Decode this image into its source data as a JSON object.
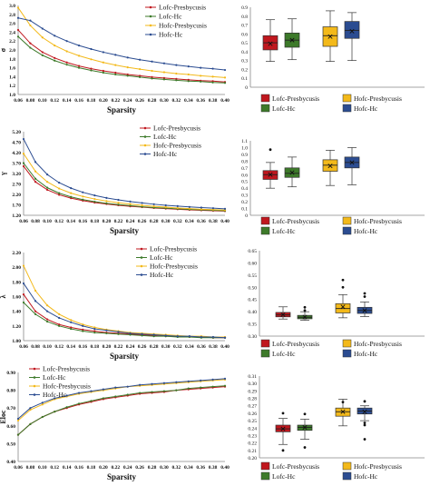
{
  "colors": {
    "lofc_presbycusis": "#c0171e",
    "lofc_hc": "#3d7a2a",
    "hofc_presbycusis": "#f3b91a",
    "hofc_hc": "#2b4c91"
  },
  "chart_data": [
    {
      "type": "line",
      "panel": "row1-line",
      "ylabel": "σ",
      "xlabel": "Sparsity",
      "x": [
        0.06,
        0.08,
        0.1,
        0.12,
        0.14,
        0.16,
        0.18,
        0.2,
        0.22,
        0.24,
        0.26,
        0.28,
        0.3,
        0.32,
        0.34,
        0.36,
        0.38,
        0.4
      ],
      "x_ticks": [
        "0.06",
        "0.08",
        "0.10",
        "0.12",
        "0.14",
        "0.16",
        "0.18",
        "0.20",
        "0.22",
        "0.24",
        "0.26",
        "0.28",
        "0.30",
        "0.32",
        "0.34",
        "0.36",
        "0.38",
        "0.40"
      ],
      "y_ticks": [
        "1.0",
        "1.2",
        "1.4",
        "1.6",
        "1.8",
        "2.0",
        "2.2",
        "2.4",
        "2.6",
        "2.8",
        "3.0"
      ],
      "ylim": [
        1.0,
        3.0
      ],
      "legend": "top-right",
      "series": [
        {
          "name": "Lofc-Presbycusis",
          "color_key": "lofc_presbycusis",
          "values": [
            2.45,
            2.15,
            1.95,
            1.82,
            1.72,
            1.64,
            1.58,
            1.53,
            1.49,
            1.45,
            1.42,
            1.39,
            1.37,
            1.35,
            1.33,
            1.31,
            1.3,
            1.28
          ]
        },
        {
          "name": "Lofc-Hc",
          "color_key": "lofc_hc",
          "values": [
            2.3,
            2.05,
            1.88,
            1.76,
            1.67,
            1.6,
            1.54,
            1.49,
            1.45,
            1.42,
            1.39,
            1.36,
            1.34,
            1.32,
            1.3,
            1.29,
            1.27,
            1.26
          ]
        },
        {
          "name": "Hofc-Presbycusis",
          "color_key": "hofc_presbycusis",
          "values": [
            2.95,
            2.55,
            2.28,
            2.1,
            1.97,
            1.87,
            1.79,
            1.72,
            1.66,
            1.61,
            1.57,
            1.53,
            1.5,
            1.47,
            1.45,
            1.42,
            1.4,
            1.38
          ]
        },
        {
          "name": "Hofc-Hc",
          "color_key": "hofc_hc",
          "values": [
            2.72,
            2.66,
            2.48,
            2.32,
            2.2,
            2.1,
            2.02,
            1.95,
            1.89,
            1.83,
            1.78,
            1.74,
            1.7,
            1.66,
            1.63,
            1.6,
            1.58,
            1.55
          ]
        }
      ]
    },
    {
      "type": "box",
      "panel": "row1-box",
      "y_ticks": [
        "0",
        "0.1",
        "0.2",
        "0.3",
        "0.4",
        "0.5",
        "0.6",
        "0.7",
        "0.8",
        "0.9"
      ],
      "ylim": [
        0,
        0.9
      ],
      "legend": "bottom",
      "boxes": [
        {
          "name": "Lofc-Presbycusis",
          "color_key": "lofc_presbycusis",
          "min": 0.29,
          "q1": 0.42,
          "median": 0.5,
          "q3": 0.58,
          "max": 0.76,
          "mean": 0.49
        },
        {
          "name": "Lofc-Hc",
          "color_key": "lofc_hc",
          "min": 0.31,
          "q1": 0.45,
          "median": 0.53,
          "q3": 0.61,
          "max": 0.77,
          "mean": 0.53
        },
        {
          "name": "Hofc-Presbycusis",
          "color_key": "hofc_presbycusis",
          "min": 0.29,
          "q1": 0.46,
          "median": 0.58,
          "q3": 0.68,
          "max": 0.86,
          "mean": 0.57
        },
        {
          "name": "Hofc-Hc",
          "color_key": "hofc_hc",
          "min": 0.3,
          "q1": 0.55,
          "median": 0.64,
          "q3": 0.74,
          "max": 0.84,
          "mean": 0.63
        }
      ],
      "outliers": []
    },
    {
      "type": "line",
      "panel": "row2-line",
      "ylabel": "γ",
      "xlabel": "Sparsity",
      "x": [
        0.06,
        0.08,
        0.1,
        0.12,
        0.14,
        0.16,
        0.18,
        0.2,
        0.22,
        0.24,
        0.26,
        0.28,
        0.3,
        0.32,
        0.34,
        0.36,
        0.38,
        0.4
      ],
      "x_ticks": [
        "0.06",
        "0.08",
        "0.10",
        "0.12",
        "0.14",
        "0.16",
        "0.18",
        "0.20",
        "0.22",
        "0.24",
        "0.26",
        "0.28",
        "0.30",
        "0.32",
        "0.34",
        "0.36",
        "0.38",
        "0.40"
      ],
      "y_ticks": [
        "1.20",
        "1.70",
        "2.20",
        "2.70",
        "3.20",
        "3.70",
        "4.20",
        "4.70",
        "5.20"
      ],
      "ylim": [
        1.2,
        5.2
      ],
      "legend": "top-right",
      "series": [
        {
          "name": "Lofc-Presbycusis",
          "color_key": "lofc_presbycusis",
          "values": [
            3.55,
            2.8,
            2.42,
            2.18,
            2.02,
            1.9,
            1.81,
            1.74,
            1.68,
            1.63,
            1.59,
            1.55,
            1.52,
            1.49,
            1.46,
            1.44,
            1.42,
            1.4
          ]
        },
        {
          "name": "Lofc-Hc",
          "color_key": "lofc_hc",
          "values": [
            3.7,
            2.95,
            2.52,
            2.26,
            2.08,
            1.95,
            1.85,
            1.77,
            1.71,
            1.66,
            1.61,
            1.57,
            1.54,
            1.51,
            1.48,
            1.46,
            1.44,
            1.42
          ]
        },
        {
          "name": "Hofc-Presbycusis",
          "color_key": "hofc_presbycusis",
          "values": [
            4.15,
            3.3,
            2.8,
            2.48,
            2.26,
            2.1,
            1.98,
            1.88,
            1.8,
            1.74,
            1.68,
            1.63,
            1.59,
            1.55,
            1.52,
            1.49,
            1.47,
            1.45
          ]
        },
        {
          "name": "Hofc-Hc",
          "color_key": "hofc_hc",
          "values": [
            4.85,
            3.75,
            3.15,
            2.76,
            2.5,
            2.3,
            2.15,
            2.03,
            1.94,
            1.86,
            1.79,
            1.73,
            1.68,
            1.64,
            1.6,
            1.57,
            1.54,
            1.51
          ]
        }
      ]
    },
    {
      "type": "box",
      "panel": "row2-box",
      "y_ticks": [
        "0",
        "0.1",
        "0.2",
        "0.3",
        "0.4",
        "0.5",
        "0.6",
        "0.7",
        "0.8",
        "0.9",
        "1.0",
        "1.1"
      ],
      "ylim": [
        0,
        1.1
      ],
      "legend": "bottom",
      "boxes": [
        {
          "name": "Lofc-Presbycusis",
          "color_key": "lofc_presbycusis",
          "min": 0.4,
          "q1": 0.53,
          "median": 0.6,
          "q3": 0.66,
          "max": 0.78,
          "mean": 0.6
        },
        {
          "name": "Lofc-Hc",
          "color_key": "lofc_hc",
          "min": 0.42,
          "q1": 0.56,
          "median": 0.62,
          "q3": 0.7,
          "max": 0.86,
          "mean": 0.63
        },
        {
          "name": "Hofc-Presbycusis",
          "color_key": "hofc_presbycusis",
          "min": 0.44,
          "q1": 0.65,
          "median": 0.74,
          "q3": 0.82,
          "max": 0.96,
          "mean": 0.73
        },
        {
          "name": "Hofc-Hc",
          "color_key": "hofc_hc",
          "min": 0.45,
          "q1": 0.7,
          "median": 0.78,
          "q3": 0.86,
          "max": 1.0,
          "mean": 0.78
        }
      ],
      "outliers": [
        {
          "box": 0,
          "value": 0.97
        }
      ]
    },
    {
      "type": "line",
      "panel": "row3-line",
      "ylabel": "λ",
      "xlabel": "Sparsity",
      "x": [
        0.06,
        0.08,
        0.1,
        0.12,
        0.14,
        0.16,
        0.18,
        0.2,
        0.22,
        0.24,
        0.26,
        0.28,
        0.3,
        0.32,
        0.34,
        0.36,
        0.38,
        0.4
      ],
      "x_ticks": [
        "0.06",
        "0.08",
        "0.10",
        "0.12",
        "0.14",
        "0.16",
        "0.18",
        "0.20",
        "0.22",
        "0.24",
        "0.26",
        "0.28",
        "0.30",
        "0.32",
        "0.34",
        "0.36",
        "0.38",
        "0.40"
      ],
      "y_ticks": [
        "1.00",
        "1.20",
        "1.40",
        "1.60",
        "1.80",
        "2.00",
        "2.20"
      ],
      "ylim": [
        1.0,
        2.2
      ],
      "legend": "top-right",
      "series": [
        {
          "name": "Lofc-Presbycusis",
          "color_key": "lofc_presbycusis",
          "values": [
            1.63,
            1.4,
            1.29,
            1.22,
            1.18,
            1.15,
            1.13,
            1.11,
            1.1,
            1.09,
            1.08,
            1.07,
            1.06,
            1.06,
            1.05,
            1.05,
            1.04,
            1.04
          ]
        },
        {
          "name": "Lofc-Hc",
          "color_key": "lofc_hc",
          "values": [
            1.52,
            1.36,
            1.26,
            1.2,
            1.16,
            1.13,
            1.11,
            1.1,
            1.09,
            1.08,
            1.07,
            1.06,
            1.06,
            1.05,
            1.05,
            1.04,
            1.04,
            1.04
          ]
        },
        {
          "name": "Hofc-Presbycusis",
          "color_key": "hofc_presbycusis",
          "values": [
            2.02,
            1.68,
            1.48,
            1.36,
            1.28,
            1.22,
            1.18,
            1.15,
            1.13,
            1.11,
            1.1,
            1.09,
            1.08,
            1.07,
            1.06,
            1.06,
            1.05,
            1.05
          ]
        },
        {
          "name": "Hofc-Hc",
          "color_key": "hofc_hc",
          "values": [
            1.78,
            1.54,
            1.4,
            1.31,
            1.25,
            1.2,
            1.16,
            1.14,
            1.12,
            1.1,
            1.09,
            1.08,
            1.07,
            1.06,
            1.06,
            1.05,
            1.05,
            1.04
          ]
        }
      ]
    },
    {
      "type": "box",
      "panel": "row3-box",
      "y_ticks": [
        "0.30",
        "0.35",
        "0.40",
        "0.45",
        "0.50",
        "0.55",
        "0.60",
        "0.65"
      ],
      "ylim": [
        0.3,
        0.65
      ],
      "legend": "bottom",
      "boxes": [
        {
          "name": "Lofc-Presbycusis",
          "color_key": "lofc_presbycusis",
          "min": 0.37,
          "q1": 0.379,
          "median": 0.387,
          "q3": 0.397,
          "max": 0.42,
          "mean": 0.388
        },
        {
          "name": "Lofc-Hc",
          "color_key": "lofc_hc",
          "min": 0.365,
          "q1": 0.371,
          "median": 0.377,
          "q3": 0.385,
          "max": 0.4,
          "mean": 0.378
        },
        {
          "name": "Hofc-Presbycusis",
          "color_key": "hofc_presbycusis",
          "min": 0.375,
          "q1": 0.395,
          "median": 0.413,
          "q3": 0.433,
          "max": 0.47,
          "mean": 0.42
        },
        {
          "name": "Hofc-Hc",
          "color_key": "hofc_hc",
          "min": 0.38,
          "q1": 0.393,
          "median": 0.405,
          "q3": 0.418,
          "max": 0.44,
          "mean": 0.405
        }
      ],
      "outliers": [
        {
          "box": 1,
          "value": 0.418
        },
        {
          "box": 1,
          "value": 0.405
        },
        {
          "box": 2,
          "value": 0.53
        },
        {
          "box": 2,
          "value": 0.5
        },
        {
          "box": 3,
          "value": 0.475
        },
        {
          "box": 3,
          "value": 0.462
        }
      ]
    },
    {
      "type": "line",
      "panel": "row4-line",
      "ylabel": "Eloc",
      "xlabel": "Sparsity",
      "x": [
        0.06,
        0.08,
        0.1,
        0.12,
        0.14,
        0.16,
        0.18,
        0.2,
        0.22,
        0.24,
        0.26,
        0.28,
        0.3,
        0.32,
        0.34,
        0.36,
        0.38,
        0.4
      ],
      "x_ticks": [
        "0.06",
        "0.08",
        "0.10",
        "0.12",
        "0.14",
        "0.16",
        "0.18",
        "0.20",
        "0.22",
        "0.24",
        "0.26",
        "0.28",
        "0.30",
        "0.32",
        "0.34",
        "0.36",
        "0.38",
        "0.40"
      ],
      "y_ticks": [
        "0.40",
        "0.50",
        "0.60",
        "0.70",
        "0.80",
        "0.90"
      ],
      "ylim": [
        0.4,
        0.9
      ],
      "legend": "top-left",
      "series": [
        {
          "name": "Lofc-Presbycusis",
          "color_key": "lofc_presbycusis",
          "values": [
            0.55,
            0.61,
            0.65,
            0.68,
            0.7,
            0.72,
            0.735,
            0.75,
            0.76,
            0.77,
            0.78,
            0.785,
            0.79,
            0.8,
            0.805,
            0.81,
            0.815,
            0.82
          ]
        },
        {
          "name": "Lofc-Hc",
          "color_key": "lofc_hc",
          "values": [
            0.55,
            0.61,
            0.65,
            0.68,
            0.705,
            0.725,
            0.74,
            0.755,
            0.765,
            0.775,
            0.785,
            0.79,
            0.795,
            0.8,
            0.81,
            0.815,
            0.82,
            0.825
          ]
        },
        {
          "name": "Hofc-Presbycusis",
          "color_key": "hofc_presbycusis",
          "values": [
            0.63,
            0.69,
            0.72,
            0.75,
            0.765,
            0.78,
            0.79,
            0.8,
            0.81,
            0.82,
            0.825,
            0.83,
            0.835,
            0.84,
            0.845,
            0.85,
            0.855,
            0.86
          ]
        },
        {
          "name": "Hofc-Hc",
          "color_key": "hofc_hc",
          "values": [
            0.64,
            0.7,
            0.73,
            0.755,
            0.77,
            0.785,
            0.795,
            0.805,
            0.815,
            0.82,
            0.83,
            0.835,
            0.84,
            0.845,
            0.85,
            0.855,
            0.86,
            0.865
          ]
        }
      ]
    },
    {
      "type": "box",
      "panel": "row4-box",
      "y_ticks": [
        "0.20",
        "0.21",
        "0.22",
        "0.23",
        "0.24",
        "0.25",
        "0.26",
        "0.27",
        "0.28",
        "0.29",
        "0.30",
        "0.31"
      ],
      "ylim": [
        0.2,
        0.31
      ],
      "legend": "bottom",
      "boxes": [
        {
          "name": "Lofc-Presbycusis",
          "color_key": "lofc_presbycusis",
          "min": 0.218,
          "q1": 0.235,
          "median": 0.239,
          "q3": 0.244,
          "max": 0.253,
          "mean": 0.239
        },
        {
          "name": "Lofc-Hc",
          "color_key": "lofc_hc",
          "min": 0.225,
          "q1": 0.237,
          "median": 0.241,
          "q3": 0.244,
          "max": 0.252,
          "mean": 0.241
        },
        {
          "name": "Hofc-Presbycusis",
          "color_key": "hofc_presbycusis",
          "min": 0.243,
          "q1": 0.256,
          "median": 0.262,
          "q3": 0.267,
          "max": 0.279,
          "mean": 0.262
        },
        {
          "name": "Hofc-Hc",
          "color_key": "hofc_hc",
          "min": 0.25,
          "q1": 0.259,
          "median": 0.263,
          "q3": 0.267,
          "max": 0.27,
          "mean": 0.262
        }
      ],
      "outliers": [
        {
          "box": 0,
          "value": 0.26
        },
        {
          "box": 0,
          "value": 0.21
        },
        {
          "box": 1,
          "value": 0.259
        },
        {
          "box": 1,
          "value": 0.214
        },
        {
          "box": 2,
          "value": 0.275
        },
        {
          "box": 3,
          "value": 0.276
        },
        {
          "box": 3,
          "value": 0.247
        },
        {
          "box": 3,
          "value": 0.244
        },
        {
          "box": 3,
          "value": 0.225
        }
      ]
    }
  ]
}
